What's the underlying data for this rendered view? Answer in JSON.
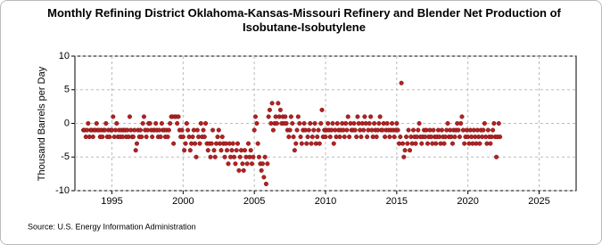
{
  "chart_data": {
    "type": "scatter",
    "title": "Monthly Refining District Oklahoma-Kansas-Missouri Refinery and Blender Net Production of Isobutane-Isobutylene",
    "y_label": "Thousand Barrels per Day",
    "source": "Source: U.S. Energy Information Administration",
    "color": "#b22222",
    "xlim": [
      1992.4,
      2027.6
    ],
    "xticks": [
      1995,
      2000,
      2005,
      2010,
      2015,
      2020,
      2025
    ],
    "ylim": [
      -10,
      10
    ],
    "yticks": [
      -10,
      -5,
      0,
      5,
      10
    ],
    "grid": true,
    "x": [
      1993,
      1993.08,
      1993.17,
      1993.25,
      1993.33,
      1993.42,
      1993.5,
      1993.58,
      1993.67,
      1993.75,
      1993.83,
      1993.92,
      1994,
      1994.08,
      1994.17,
      1994.25,
      1994.33,
      1994.42,
      1994.5,
      1994.58,
      1994.67,
      1994.75,
      1994.83,
      1994.92,
      1995,
      1995.08,
      1995.17,
      1995.25,
      1995.33,
      1995.42,
      1995.5,
      1995.58,
      1995.67,
      1995.75,
      1995.83,
      1995.92,
      1996,
      1996.08,
      1996.17,
      1996.25,
      1996.33,
      1996.42,
      1996.5,
      1996.58,
      1996.67,
      1996.75,
      1996.83,
      1996.92,
      1997,
      1997.08,
      1997.17,
      1997.25,
      1997.33,
      1997.42,
      1997.5,
      1997.58,
      1997.67,
      1997.75,
      1997.83,
      1997.92,
      1998,
      1998.08,
      1998.17,
      1998.25,
      1998.33,
      1998.42,
      1998.5,
      1998.58,
      1998.67,
      1998.75,
      1998.83,
      1998.92,
      1999,
      1999.08,
      1999.17,
      1999.25,
      1999.33,
      1999.42,
      1999.5,
      1999.58,
      1999.67,
      1999.75,
      1999.83,
      1999.92,
      2000,
      2000.08,
      2000.17,
      2000.25,
      2000.33,
      2000.42,
      2000.5,
      2000.58,
      2000.67,
      2000.75,
      2000.83,
      2000.92,
      2001,
      2001.08,
      2001.17,
      2001.25,
      2001.33,
      2001.42,
      2001.5,
      2001.58,
      2001.67,
      2001.75,
      2001.83,
      2001.92,
      2002,
      2002.08,
      2002.17,
      2002.25,
      2002.33,
      2002.42,
      2002.5,
      2002.58,
      2002.67,
      2002.75,
      2002.83,
      2002.92,
      2003,
      2003.08,
      2003.17,
      2003.25,
      2003.33,
      2003.42,
      2003.5,
      2003.58,
      2003.67,
      2003.75,
      2003.83,
      2003.92,
      2004,
      2004.08,
      2004.17,
      2004.25,
      2004.33,
      2004.42,
      2004.5,
      2004.58,
      2004.67,
      2004.75,
      2004.83,
      2004.92,
      2005,
      2005.08,
      2005.17,
      2005.25,
      2005.33,
      2005.42,
      2005.5,
      2005.58,
      2005.67,
      2005.75,
      2005.83,
      2005.92,
      2006,
      2006.08,
      2006.17,
      2006.25,
      2006.33,
      2006.42,
      2006.5,
      2006.58,
      2006.67,
      2006.75,
      2006.83,
      2006.92,
      2007,
      2007.08,
      2007.17,
      2007.25,
      2007.33,
      2007.42,
      2007.5,
      2007.58,
      2007.67,
      2007.75,
      2007.83,
      2007.92,
      2008,
      2008.08,
      2008.17,
      2008.25,
      2008.33,
      2008.42,
      2008.5,
      2008.58,
      2008.67,
      2008.75,
      2008.83,
      2008.92,
      2009,
      2009.08,
      2009.17,
      2009.25,
      2009.33,
      2009.42,
      2009.5,
      2009.58,
      2009.67,
      2009.75,
      2009.83,
      2009.92,
      2010,
      2010.08,
      2010.17,
      2010.25,
      2010.33,
      2010.42,
      2010.5,
      2010.58,
      2010.67,
      2010.75,
      2010.83,
      2010.92,
      2011,
      2011.08,
      2011.17,
      2011.25,
      2011.33,
      2011.42,
      2011.5,
      2011.58,
      2011.67,
      2011.75,
      2011.83,
      2011.92,
      2012,
      2012.08,
      2012.17,
      2012.25,
      2012.33,
      2012.42,
      2012.5,
      2012.58,
      2012.67,
      2012.75,
      2012.83,
      2012.92,
      2013,
      2013.08,
      2013.17,
      2013.25,
      2013.33,
      2013.42,
      2013.5,
      2013.58,
      2013.67,
      2013.75,
      2013.83,
      2013.92,
      2014,
      2014.08,
      2014.17,
      2014.25,
      2014.33,
      2014.42,
      2014.5,
      2014.58,
      2014.67,
      2014.75,
      2014.83,
      2014.92,
      2015,
      2015.08,
      2015.17,
      2015.25,
      2015.33,
      2015.42,
      2015.5,
      2015.58,
      2015.67,
      2015.75,
      2015.83,
      2015.92,
      2016,
      2016.08,
      2016.17,
      2016.25,
      2016.33,
      2016.42,
      2016.5,
      2016.58,
      2016.67,
      2016.75,
      2016.83,
      2016.92,
      2017,
      2017.08,
      2017.17,
      2017.25,
      2017.33,
      2017.42,
      2017.5,
      2017.58,
      2017.67,
      2017.75,
      2017.83,
      2017.92,
      2018,
      2018.08,
      2018.17,
      2018.25,
      2018.33,
      2018.42,
      2018.5,
      2018.58,
      2018.67,
      2018.75,
      2018.83,
      2018.92,
      2019,
      2019.08,
      2019.17,
      2019.25,
      2019.33,
      2019.42,
      2019.5,
      2019.58,
      2019.67,
      2019.75,
      2019.83,
      2019.92,
      2020,
      2020.08,
      2020.17,
      2020.25,
      2020.33,
      2020.42,
      2020.5,
      2020.58,
      2020.67,
      2020.75,
      2020.83,
      2020.92,
      2021,
      2021.08,
      2021.17,
      2021.25,
      2021.33,
      2021.42,
      2021.5,
      2021.58,
      2021.67,
      2021.75,
      2021.83,
      2021.92,
      2022,
      2022.08,
      2022.17,
      2022.25
    ],
    "values": [
      -1,
      -1,
      -2,
      -1,
      0,
      -2,
      -1,
      -1,
      -2,
      -1,
      -1,
      0,
      -1,
      -1,
      -2,
      -1,
      -2,
      -1,
      -1,
      0,
      -2,
      -1,
      -2,
      -1,
      -1,
      1,
      -2,
      -1,
      0,
      -2,
      -1,
      -2,
      -1,
      -2,
      -1,
      -1,
      -2,
      -1,
      -2,
      1,
      -1,
      -2,
      -2,
      -1,
      -4,
      -3,
      -1,
      -2,
      -1,
      -2,
      0,
      1,
      -1,
      -2,
      -1,
      0,
      0,
      -1,
      -2,
      -1,
      -1,
      0,
      -1,
      -2,
      -1,
      -2,
      0,
      -1,
      -1,
      -2,
      -1,
      -2,
      -1,
      0,
      1,
      1,
      -3,
      1,
      1,
      0,
      1,
      -1,
      -2,
      -1,
      -2,
      -4,
      -3,
      0,
      -1,
      -2,
      -4,
      -3,
      -2,
      -1,
      -3,
      -5,
      -1,
      -2,
      -3,
      0,
      -2,
      -1,
      -2,
      0,
      -3,
      -4,
      -3,
      -5,
      -3,
      -1,
      -4,
      -5,
      -3,
      -2,
      -1,
      -3,
      -4,
      -2,
      -3,
      -5,
      -3,
      -4,
      -6,
      -3,
      -5,
      -4,
      -3,
      -5,
      -6,
      -4,
      -3,
      -7,
      -5,
      -4,
      -6,
      -7,
      -4,
      -5,
      -6,
      -3,
      -5,
      -4,
      -6,
      -5,
      -1,
      1,
      0,
      -3,
      -5,
      -6,
      -7,
      -6,
      -8,
      -5,
      -9,
      -6,
      1,
      2,
      0,
      3,
      -1,
      0,
      1,
      0,
      3,
      1,
      2,
      0,
      1,
      0,
      1,
      0,
      -1,
      -2,
      -1,
      1,
      0,
      -2,
      -4,
      -3,
      -1,
      1,
      0,
      -2,
      -3,
      -1,
      0,
      -1,
      -3,
      -2,
      -1,
      0,
      -3,
      -2,
      -1,
      0,
      -3,
      -2,
      -1,
      -3,
      0,
      2,
      -2,
      -1,
      -2,
      -1,
      0,
      -1,
      -2,
      -1,
      0,
      -3,
      -1,
      -2,
      0,
      -1,
      -2,
      -1,
      0,
      -1,
      -2,
      0,
      -1,
      1,
      -2,
      0,
      -1,
      -1,
      0,
      -1,
      -2,
      1,
      0,
      -1,
      -2,
      0,
      -1,
      1,
      0,
      -2,
      -1,
      0,
      1,
      -1,
      -2,
      0,
      -1,
      -2,
      -1,
      0,
      1,
      -1,
      -1,
      0,
      -2,
      -1,
      0,
      -1,
      -2,
      -1,
      0,
      -1,
      -2,
      -1,
      0,
      -1,
      -3,
      -2,
      6,
      -3,
      -5,
      -4,
      -2,
      -3,
      -1,
      -4,
      -2,
      -3,
      -1,
      -2,
      -3,
      -2,
      -1,
      0,
      -2,
      -3,
      -2,
      -1,
      -2,
      -1,
      -3,
      -2,
      -1,
      -2,
      -3,
      -1,
      -2,
      -3,
      -2,
      -1,
      -2,
      -3,
      -1,
      -2,
      -3,
      -2,
      -1,
      0,
      -2,
      -1,
      -2,
      -3,
      -1,
      -2,
      -1,
      0,
      -1,
      -2,
      0,
      1,
      -1,
      -3,
      -2,
      -1,
      -2,
      -3,
      -1,
      -2,
      -3,
      -1,
      -2,
      -3,
      -1,
      -2,
      -3,
      -1,
      -2,
      -1,
      0,
      -2,
      -3,
      -1,
      -2,
      -3,
      -2,
      -1,
      0,
      -2,
      -5,
      -2,
      0,
      -2
    ]
  }
}
